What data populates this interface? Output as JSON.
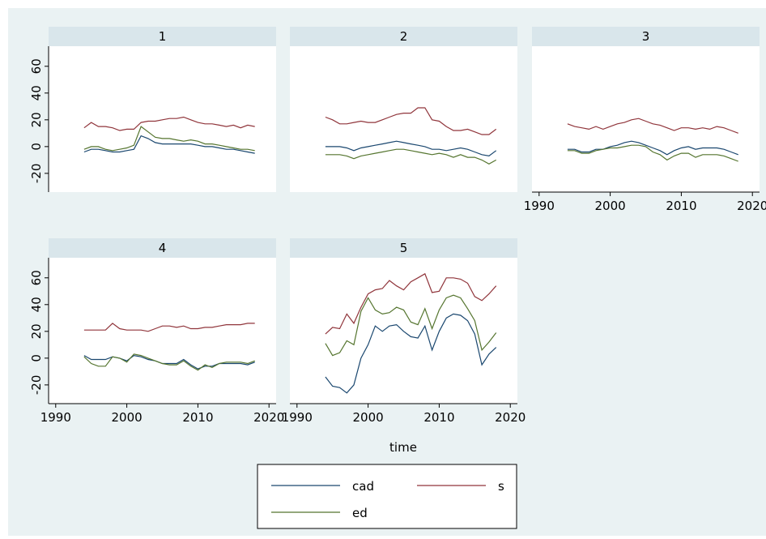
{
  "chart_data": {
    "type": "line",
    "xlabel": "time",
    "x": [
      1994,
      1995,
      1996,
      1997,
      1998,
      1999,
      2000,
      2001,
      2002,
      2003,
      2004,
      2005,
      2006,
      2007,
      2008,
      2009,
      2010,
      2011,
      2012,
      2013,
      2014,
      2015,
      2016,
      2017,
      2018
    ],
    "xlim": [
      1989,
      2021
    ],
    "xticks": [
      1990,
      2000,
      2010,
      2020
    ],
    "ylim": [
      -34,
      75
    ],
    "yticks": [
      -20,
      0,
      20,
      40,
      60
    ],
    "series": [
      {
        "name": "cad",
        "color": "#1a476f"
      },
      {
        "name": "s",
        "color": "#90353b"
      },
      {
        "name": "ed",
        "color": "#55752f"
      }
    ],
    "panels": [
      {
        "title": "1",
        "values": [
          [
            -4,
            -2,
            -2,
            -3,
            -4,
            -4,
            -3,
            -2,
            8,
            6,
            3,
            2,
            2,
            2,
            2,
            2,
            1,
            0,
            0,
            -1,
            -2,
            -2,
            -3,
            -4,
            -5
          ],
          [
            14,
            18,
            15,
            15,
            14,
            12,
            13,
            13,
            18,
            19,
            19,
            20,
            21,
            21,
            22,
            20,
            18,
            17,
            17,
            16,
            15,
            16,
            14,
            16,
            15
          ],
          [
            -2,
            0,
            0,
            -2,
            -3,
            -2,
            -1,
            1,
            15,
            11,
            7,
            6,
            6,
            5,
            4,
            5,
            4,
            2,
            2,
            1,
            0,
            -1,
            -2,
            -2,
            -3
          ]
        ]
      },
      {
        "title": "2",
        "values": [
          [
            0,
            0,
            0,
            -1,
            -3,
            -1,
            0,
            1,
            2,
            3,
            4,
            3,
            2,
            1,
            0,
            -2,
            -2,
            -3,
            -2,
            -1,
            -2,
            -4,
            -6,
            -7,
            -3
          ],
          [
            22,
            20,
            17,
            17,
            18,
            19,
            18,
            18,
            20,
            22,
            24,
            25,
            25,
            29,
            29,
            20,
            19,
            15,
            12,
            12,
            13,
            11,
            9,
            9,
            13
          ],
          [
            -6,
            -6,
            -6,
            -7,
            -9,
            -7,
            -6,
            -5,
            -4,
            -3,
            -2,
            -2,
            -3,
            -4,
            -5,
            -6,
            -5,
            -6,
            -8,
            -6,
            -8,
            -8,
            -10,
            -13,
            -10
          ]
        ]
      },
      {
        "title": "3",
        "values": [
          [
            -2,
            -2,
            -4,
            -4,
            -2,
            -2,
            0,
            1,
            3,
            4,
            3,
            1,
            -1,
            -3,
            -6,
            -3,
            -1,
            0,
            -2,
            -1,
            -1,
            -1,
            -2,
            -4,
            -6
          ],
          [
            17,
            15,
            14,
            13,
            15,
            13,
            15,
            17,
            18,
            20,
            21,
            19,
            17,
            16,
            14,
            12,
            14,
            14,
            13,
            14,
            13,
            15,
            14,
            12,
            10
          ],
          [
            -3,
            -3,
            -5,
            -5,
            -3,
            -2,
            -1,
            -1,
            0,
            1,
            1,
            0,
            -4,
            -6,
            -10,
            -7,
            -5,
            -5,
            -8,
            -6,
            -6,
            -6,
            -7,
            -9,
            -11
          ]
        ]
      },
      {
        "title": "4",
        "values": [
          [
            2,
            -1,
            -1,
            -1,
            1,
            0,
            -2,
            2,
            1,
            -1,
            -2,
            -4,
            -4,
            -4,
            -1,
            -5,
            -8,
            -6,
            -6,
            -4,
            -4,
            -4,
            -4,
            -5,
            -3
          ],
          [
            21,
            21,
            21,
            21,
            26,
            22,
            21,
            21,
            21,
            20,
            22,
            24,
            24,
            23,
            24,
            22,
            22,
            23,
            23,
            24,
            25,
            25,
            25,
            26,
            26
          ],
          [
            1,
            -4,
            -6,
            -6,
            1,
            0,
            -3,
            3,
            2,
            0,
            -2,
            -4,
            -5,
            -5,
            -2,
            -6,
            -9,
            -5,
            -7,
            -4,
            -3,
            -3,
            -3,
            -4,
            -2
          ]
        ]
      },
      {
        "title": "5",
        "values": [
          [
            -14,
            -21,
            -22,
            -26,
            -20,
            0,
            10,
            24,
            20,
            24,
            25,
            20,
            16,
            15,
            24,
            6,
            20,
            30,
            33,
            32,
            28,
            18,
            -5,
            3,
            8
          ],
          [
            18,
            23,
            22,
            33,
            26,
            38,
            48,
            51,
            52,
            58,
            54,
            51,
            57,
            60,
            63,
            49,
            50,
            60,
            60,
            59,
            56,
            46,
            43,
            48,
            54
          ],
          [
            11,
            2,
            4,
            13,
            10,
            35,
            45,
            36,
            33,
            34,
            38,
            36,
            27,
            25,
            37,
            22,
            36,
            45,
            47,
            45,
            37,
            28,
            6,
            12,
            19
          ]
        ]
      }
    ]
  }
}
